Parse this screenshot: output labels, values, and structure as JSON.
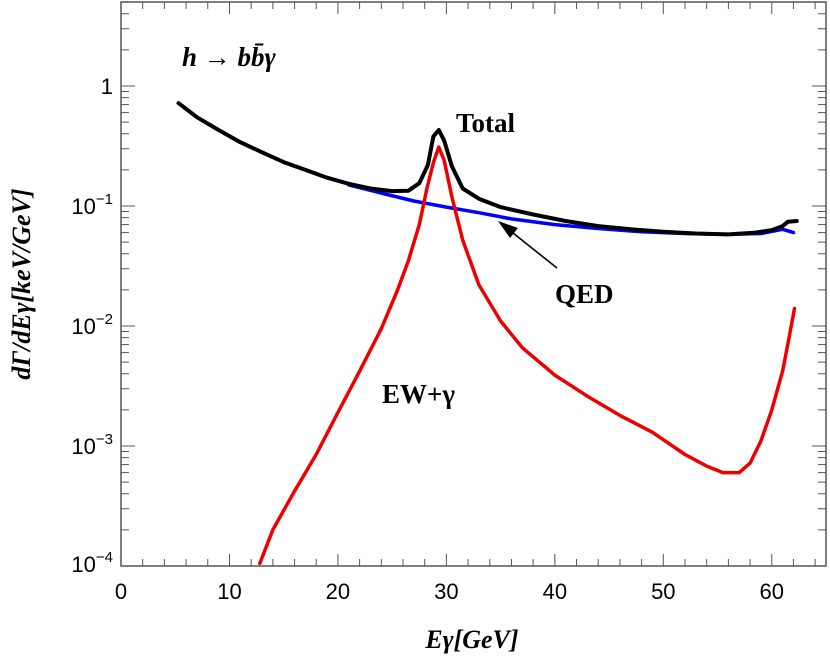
{
  "chart_data": {
    "type": "line",
    "title": "",
    "xlabel": "Eγ[GeV]",
    "ylabel": "dΓ/dEγ[keV/GeV]",
    "xlim": [
      0,
      65
    ],
    "ylim_log10": [
      -4,
      0.7
    ],
    "yscale": "log",
    "grid": false,
    "x_ticks": [
      0,
      10,
      20,
      30,
      40,
      50,
      60
    ],
    "y_ticks": [
      {
        "exp": -4,
        "label": "10",
        "sup": "−4"
      },
      {
        "exp": -3,
        "label": "10",
        "sup": "−3"
      },
      {
        "exp": -2,
        "label": "10",
        "sup": "−2"
      },
      {
        "exp": -1,
        "label": "10",
        "sup": "−1"
      },
      {
        "exp": 0,
        "label": "1",
        "sup": ""
      }
    ],
    "annotations": {
      "process": "h → bb̄γ",
      "total": "Total",
      "qed": "QED",
      "ew": "EW+γ"
    },
    "colors": {
      "total": "#000000",
      "qed": "#0000ff",
      "ew": "#ee0000",
      "frame": "#555555"
    },
    "series": [
      {
        "id": "qed",
        "values": [
          [
            21,
            0.15
          ],
          [
            24,
            0.128
          ],
          [
            27,
            0.11
          ],
          [
            30,
            0.098
          ],
          [
            33,
            0.088
          ],
          [
            36,
            0.078
          ],
          [
            40,
            0.07
          ],
          [
            44,
            0.065
          ],
          [
            48,
            0.061
          ],
          [
            52,
            0.059
          ],
          [
            56,
            0.058
          ],
          [
            59,
            0.059
          ],
          [
            61,
            0.064
          ],
          [
            62,
            0.06
          ]
        ]
      },
      {
        "id": "total",
        "values": [
          [
            5.3,
            0.72
          ],
          [
            7,
            0.55
          ],
          [
            9,
            0.43
          ],
          [
            11,
            0.34
          ],
          [
            13,
            0.28
          ],
          [
            15,
            0.232
          ],
          [
            17,
            0.2
          ],
          [
            19,
            0.172
          ],
          [
            21,
            0.153
          ],
          [
            23,
            0.14
          ],
          [
            25,
            0.133
          ],
          [
            26.5,
            0.134
          ],
          [
            27.5,
            0.155
          ],
          [
            28.3,
            0.22
          ],
          [
            28.8,
            0.38
          ],
          [
            29.3,
            0.43
          ],
          [
            29.8,
            0.35
          ],
          [
            30.5,
            0.215
          ],
          [
            31.5,
            0.14
          ],
          [
            33,
            0.115
          ],
          [
            35,
            0.098
          ],
          [
            38,
            0.085
          ],
          [
            41,
            0.075
          ],
          [
            44,
            0.068
          ],
          [
            47,
            0.064
          ],
          [
            50,
            0.061
          ],
          [
            53,
            0.059
          ],
          [
            56,
            0.058
          ],
          [
            58.5,
            0.06
          ],
          [
            60,
            0.063
          ],
          [
            61,
            0.068
          ],
          [
            61.5,
            0.074
          ],
          [
            62.3,
            0.075
          ]
        ]
      },
      {
        "id": "ew",
        "values": [
          [
            12.8,
            0.000105
          ],
          [
            14,
            0.0002
          ],
          [
            16,
            0.00042
          ],
          [
            18,
            0.00085
          ],
          [
            20,
            0.0019
          ],
          [
            22,
            0.0042
          ],
          [
            24,
            0.0095
          ],
          [
            25.5,
            0.02
          ],
          [
            26.5,
            0.035
          ],
          [
            27.5,
            0.07
          ],
          [
            28.2,
            0.14
          ],
          [
            28.8,
            0.23
          ],
          [
            29.3,
            0.31
          ],
          [
            29.8,
            0.24
          ],
          [
            30.5,
            0.12
          ],
          [
            31.5,
            0.052
          ],
          [
            33,
            0.022
          ],
          [
            35,
            0.011
          ],
          [
            37,
            0.0066
          ],
          [
            40,
            0.0039
          ],
          [
            43,
            0.0026
          ],
          [
            46,
            0.0018
          ],
          [
            49,
            0.0013
          ],
          [
            52,
            0.00085
          ],
          [
            54,
            0.00068
          ],
          [
            55.5,
            0.0006
          ],
          [
            57,
            0.0006
          ],
          [
            58,
            0.00072
          ],
          [
            59,
            0.0011
          ],
          [
            60,
            0.002
          ],
          [
            61,
            0.0042
          ],
          [
            61.6,
            0.008
          ],
          [
            62.1,
            0.014
          ]
        ]
      }
    ]
  }
}
